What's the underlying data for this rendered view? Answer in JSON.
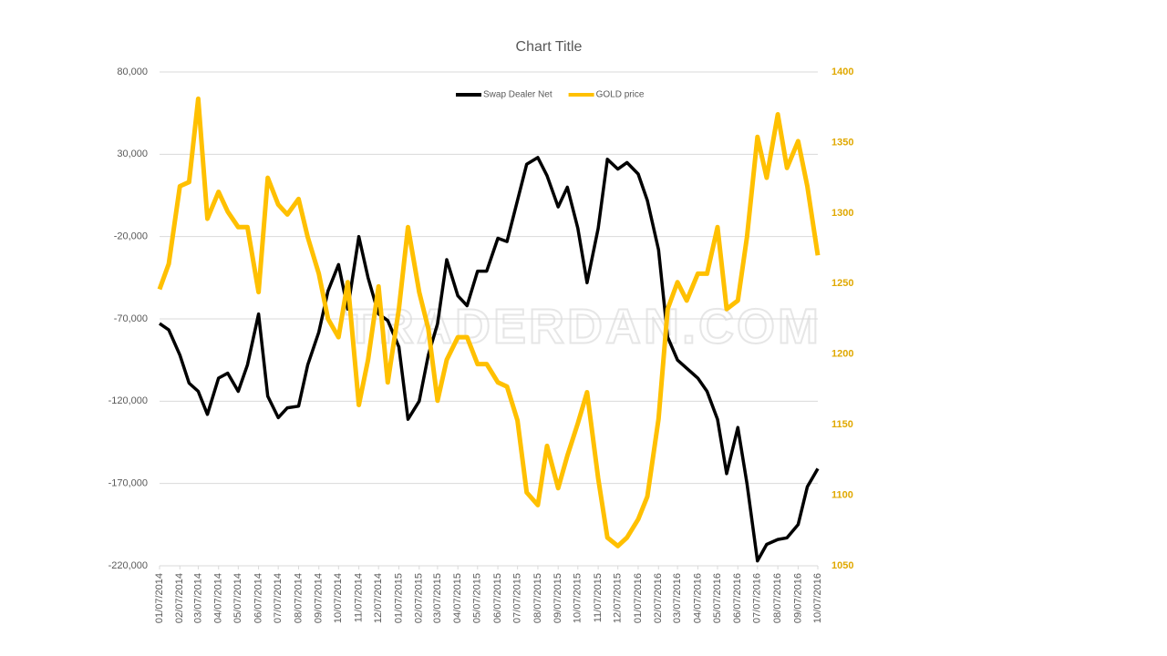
{
  "chart_data": {
    "type": "line",
    "title": "Chart Title",
    "watermark": "TRADERDAN.COM",
    "legend": "top",
    "grid": true,
    "x": [
      "01/07/2014",
      "01/21/2014",
      "02/07/2014",
      "02/21/2014",
      "03/07/2014",
      "03/21/2014",
      "04/07/2014",
      "04/21/2014",
      "05/07/2014",
      "05/21/2014",
      "06/07/2014",
      "06/21/2014",
      "07/07/2014",
      "07/21/2014",
      "08/07/2014",
      "08/21/2014",
      "09/07/2014",
      "09/21/2014",
      "10/07/2014",
      "10/21/2014",
      "11/07/2014",
      "11/21/2014",
      "12/07/2014",
      "12/21/2014",
      "01/07/2015",
      "01/21/2015",
      "02/07/2015",
      "02/21/2015",
      "03/07/2015",
      "03/21/2015",
      "04/07/2015",
      "04/21/2015",
      "05/07/2015",
      "05/21/2015",
      "06/07/2015",
      "06/21/2015",
      "07/07/2015",
      "07/21/2015",
      "08/07/2015",
      "08/21/2015",
      "09/07/2015",
      "09/21/2015",
      "10/07/2015",
      "10/21/2015",
      "11/07/2015",
      "11/21/2015",
      "12/07/2015",
      "12/21/2015",
      "01/07/2016",
      "01/21/2016",
      "02/07/2016",
      "02/21/2016",
      "03/07/2016",
      "03/21/2016",
      "04/07/2016",
      "04/21/2016",
      "05/07/2016",
      "05/21/2016",
      "06/07/2016",
      "06/21/2016",
      "07/07/2016",
      "07/21/2016",
      "08/07/2016",
      "08/21/2016",
      "09/07/2016",
      "09/21/2016",
      "10/07/2016"
    ],
    "xlim": [
      "01/07/2014",
      "10/07/2016"
    ],
    "xticks": [
      "01/07/2014",
      "02/07/2014",
      "03/07/2014",
      "04/07/2014",
      "05/07/2014",
      "06/07/2014",
      "07/07/2014",
      "08/07/2014",
      "09/07/2014",
      "10/07/2014",
      "11/07/2014",
      "12/07/2014",
      "01/07/2015",
      "02/07/2015",
      "03/07/2015",
      "04/07/2015",
      "05/07/2015",
      "06/07/2015",
      "07/07/2015",
      "08/07/2015",
      "09/07/2015",
      "10/07/2015",
      "11/07/2015",
      "12/07/2015",
      "01/07/2016",
      "02/07/2016",
      "03/07/2016",
      "04/07/2016",
      "05/07/2016",
      "06/07/2016",
      "07/07/2016",
      "08/07/2016",
      "09/07/2016",
      "10/07/2016"
    ],
    "ylim": [
      -220000,
      80000
    ],
    "yticks": [
      {
        "value": -220000,
        "label": "-220,000"
      },
      {
        "value": -170000,
        "label": "-170,000"
      },
      {
        "value": -120000,
        "label": "-120,000"
      },
      {
        "value": -70000,
        "label": "-70,000"
      },
      {
        "value": -20000,
        "label": "-20,000"
      },
      {
        "value": 30000,
        "label": "30,000"
      },
      {
        "value": 80000,
        "label": "80,000"
      }
    ],
    "y2lim": [
      1050,
      1400
    ],
    "y2ticks": [
      1050,
      1100,
      1150,
      1200,
      1250,
      1300,
      1350,
      1400
    ],
    "series": [
      {
        "name": "Swap Dealer Net",
        "color": "#000000",
        "axis": "y",
        "values": [
          -72800,
          -76700,
          -92000,
          -109000,
          -114000,
          -128000,
          -106000,
          -103000,
          -114000,
          -98000,
          -67000,
          -117000,
          -130000,
          -124000,
          -123000,
          -98000,
          -78000,
          -53000,
          -37000,
          -64000,
          -20000,
          -45000,
          -67000,
          -71000,
          -87000,
          -131000,
          -120000,
          -92000,
          -73000,
          -34000,
          -56000,
          -62000,
          -41000,
          -41000,
          -21000,
          -23000,
          2000,
          24000,
          28000,
          17000,
          -2000,
          10000,
          -15000,
          -48000,
          -15000,
          27000,
          21000,
          25000,
          18000,
          2000,
          -28000,
          -81000,
          -95000,
          -100000,
          -106000,
          -114000,
          -131000,
          -164000,
          -136000,
          -170000,
          -217000,
          -207000,
          -204000,
          -203000,
          -195000,
          -172000,
          -161000
        ]
      },
      {
        "name": "GOLD price",
        "color": "#FFC000",
        "axis": "y2",
        "values": [
          1246,
          1264,
          1319,
          1322,
          1381,
          1296,
          1315,
          1301,
          1290,
          1290,
          1244,
          1325,
          1306,
          1299,
          1310,
          1283,
          1257,
          1225,
          1212,
          1251,
          1164,
          1196,
          1248,
          1180,
          1232,
          1290,
          1244,
          1218,
          1167,
          1196,
          1212,
          1212,
          1193,
          1193,
          1180,
          1177,
          1153,
          1102,
          1093,
          1135,
          1105,
          1128,
          1151,
          1173,
          1112,
          1070,
          1064,
          1070,
          1083,
          1099,
          1154,
          1232,
          1251,
          1238,
          1257,
          1257,
          1290,
          1232,
          1238,
          1283,
          1354,
          1325,
          1370,
          1332,
          1351,
          1319,
          1270
        ]
      }
    ]
  }
}
